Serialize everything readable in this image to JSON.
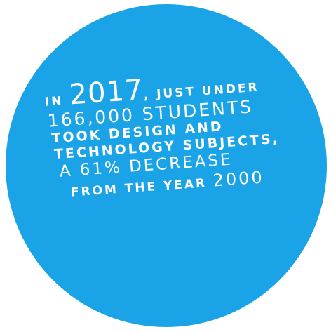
{
  "circle": {
    "color": "#1aa3e6",
    "text_color": "#ffffff"
  },
  "text": {
    "line1_prefix": "IN ",
    "line1_year": "2017",
    "line1_suffix": ", JUST UNDER",
    "line2": "166,000 STUDENTS",
    "line3": "TOOK DESIGN AND",
    "line4": "TECHNOLOGY SUBJECTS,",
    "line5": "A 61% DECREASE",
    "line6_prefix": "FROM THE YEAR ",
    "line6_year": "2000"
  }
}
